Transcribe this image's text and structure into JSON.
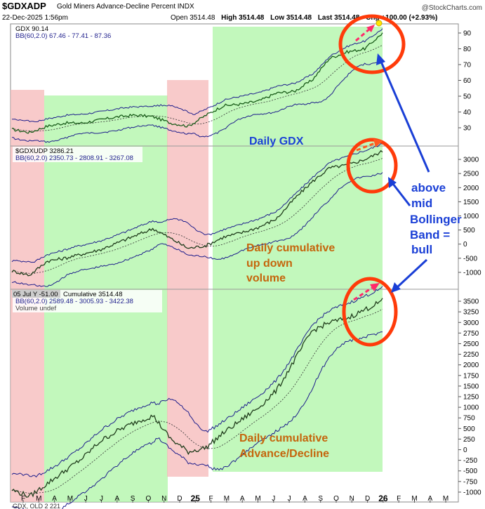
{
  "header": {
    "symbol": "$GDXADP",
    "subtitle": "Gold Miners Advance-Decline Percent INDX",
    "brand": "@StockCharts.com",
    "date": "22-Dec-2025 1:56pm",
    "open": "Open 3514.48",
    "high": "High 3514.48",
    "low": "Low 3514.48",
    "last": "Last 3514.48",
    "chg": "Chg +100.00 (+2.93%)"
  },
  "colors": {
    "green_zone": "#adf5a6",
    "red_zone": "#f5b8b8",
    "price_line": "#1a5c1a",
    "band_line": "#1e1e8c",
    "annotation_blue": "#1a3fd6",
    "annotation_orange": "#c5650c",
    "circle_red": "#ff3b0a",
    "arrow_pink": "#ff2a6a"
  },
  "chart_data": [
    {
      "type": "line",
      "panel": "top",
      "legend": [
        "GDX 90.14",
        "BB(60,2.0) 67.46 - 77.41 - 87.36"
      ],
      "y_ticks": [
        30,
        40,
        50,
        60,
        70,
        80,
        90
      ],
      "ylim": [
        22,
        94
      ],
      "series": [
        {
          "name": "GDX",
          "x": [
            "2025-01",
            "2025-03",
            "2025-06",
            "2025-08",
            "2025-10",
            "2025-12"
          ],
          "values": [
            30,
            38,
            45,
            55,
            78,
            90
          ]
        }
      ],
      "annotation": "Daily GDX"
    },
    {
      "type": "line",
      "panel": "middle",
      "legend": [
        "$GDXUDP 3286.21",
        "BB(60,2.0) 2350.73 - 2808.91 - 3267.08"
      ],
      "y_ticks": [
        -1000,
        -500,
        0,
        500,
        1000,
        1500,
        2000,
        2500,
        3000
      ],
      "ylim": [
        -1300,
        3300
      ],
      "series": [
        {
          "name": "$GDXUDP",
          "x": [
            "2024-03",
            "2025-01",
            "2025-06",
            "2025-10",
            "2025-12"
          ],
          "values": [
            -1000,
            -300,
            700,
            2300,
            3286
          ]
        }
      ],
      "annotation": "Daily cumulative up down volume"
    },
    {
      "type": "line",
      "panel": "bottom",
      "legend": [
        "05 Jul Y -51.00",
        "Cumulative 3514.48",
        "BB(60,2.0) 2589.48 - 3005.93 - 3422.38",
        "Volume undef"
      ],
      "y_ticks": [
        -1000,
        -750,
        -500,
        -250,
        0,
        250,
        500,
        750,
        1000,
        1250,
        1500,
        1750,
        2000,
        2250,
        2500,
        2750,
        3000,
        3250,
        3500
      ],
      "ylim": [
        -1150,
        3650
      ],
      "series": [
        {
          "name": "Cumulative",
          "x": [
            "2024-03",
            "2025-01",
            "2025-06",
            "2025-10",
            "2025-12"
          ],
          "values": [
            -1000,
            0,
            800,
            2800,
            3514
          ]
        }
      ],
      "annotation": "Daily cumulative Advance/Decline"
    }
  ],
  "x_axis": {
    "labels": [
      "F",
      "M",
      "A",
      "M",
      "J",
      "J",
      "A",
      "S",
      "O",
      "N",
      "D",
      "25",
      "F",
      "M",
      "A",
      "M",
      "J",
      "J",
      "A",
      "S",
      "O",
      "N",
      "D",
      "26",
      "F",
      "M",
      "A",
      "M"
    ]
  },
  "annotations": {
    "daily_gdx": "Daily GDX",
    "udv_line1": "Daily cumulative",
    "udv_line2": "up down",
    "udv_line3": "volume",
    "ad_line1": "Daily cumulative",
    "ad_line2": "Advance/Decline",
    "bull_line1": "above",
    "bull_line2": "mid",
    "bull_line3": "Bollinger",
    "bull_line4": "Band =",
    "bull_line5": "bull"
  },
  "footer": {
    "fragment": "GDX, OLD 2 221"
  }
}
